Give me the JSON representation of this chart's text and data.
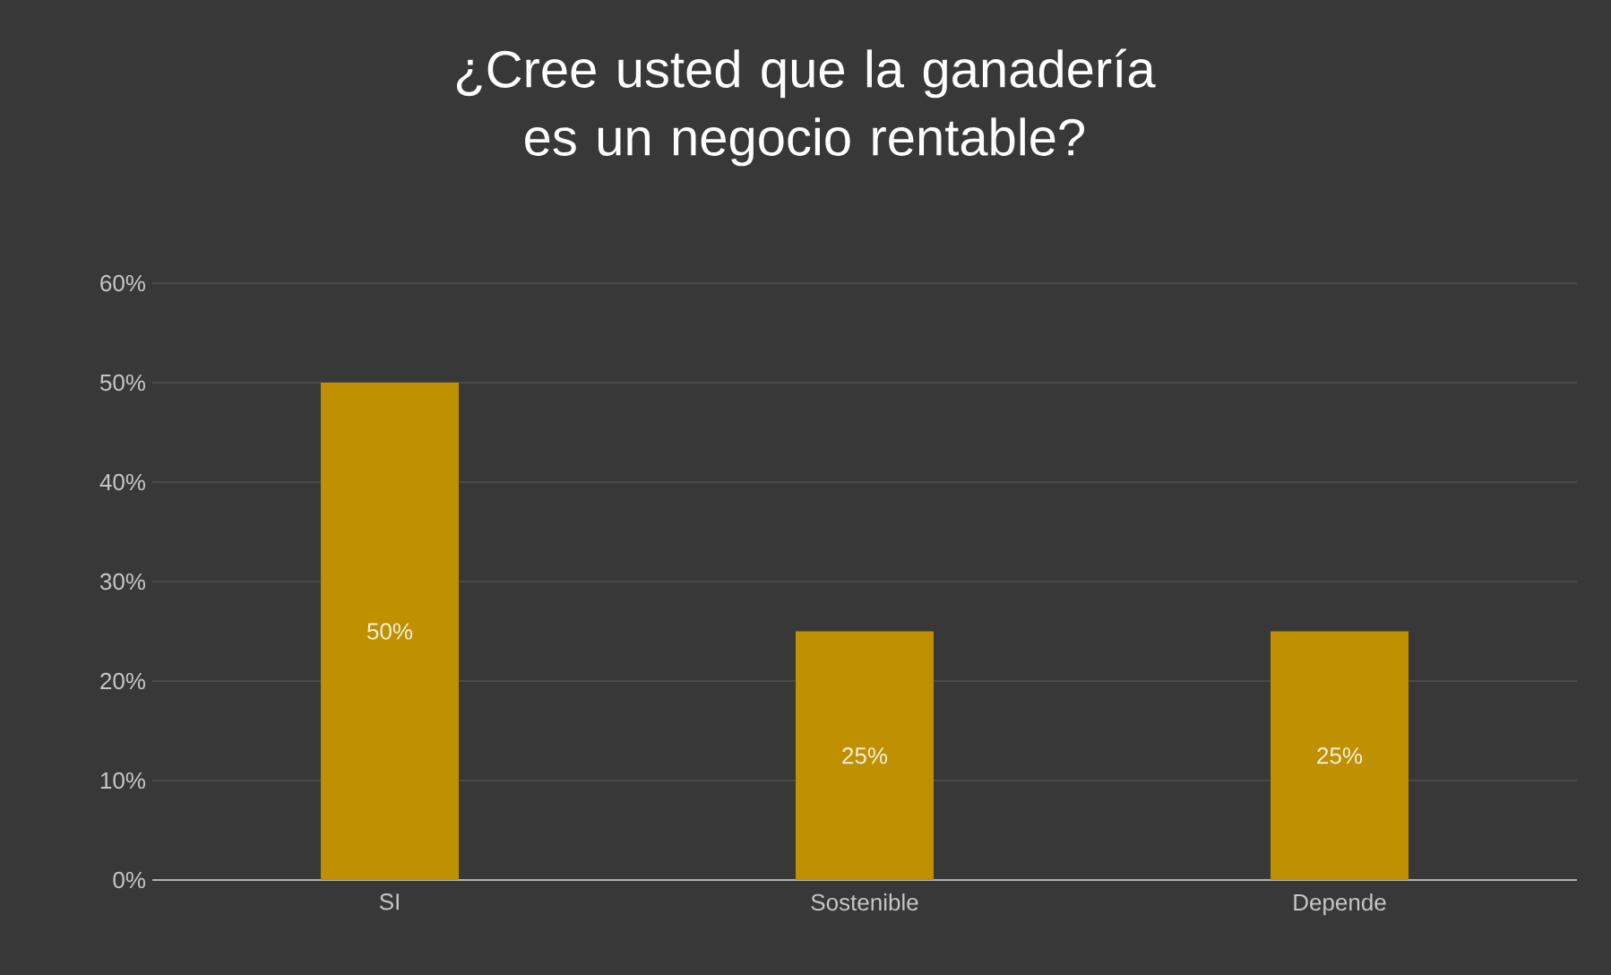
{
  "chart_data": {
    "type": "bar",
    "title": "¿Cree usted que la ganadería es un negocio rentable?",
    "categories": [
      "SI",
      "Sostenible",
      "Depende"
    ],
    "values": [
      50,
      25,
      25
    ],
    "value_labels": [
      "50%",
      "25%",
      "25%"
    ],
    "color": "#bf9000",
    "ylim": [
      0,
      60
    ],
    "yticks": [
      {
        "value": 0,
        "label": "0%"
      },
      {
        "value": 10,
        "label": "10%"
      },
      {
        "value": 20,
        "label": "20%"
      },
      {
        "value": 30,
        "label": "30%"
      },
      {
        "value": 40,
        "label": "40%"
      },
      {
        "value": 50,
        "label": "50%"
      },
      {
        "value": 60,
        "label": "60%"
      }
    ],
    "grid": "y"
  }
}
